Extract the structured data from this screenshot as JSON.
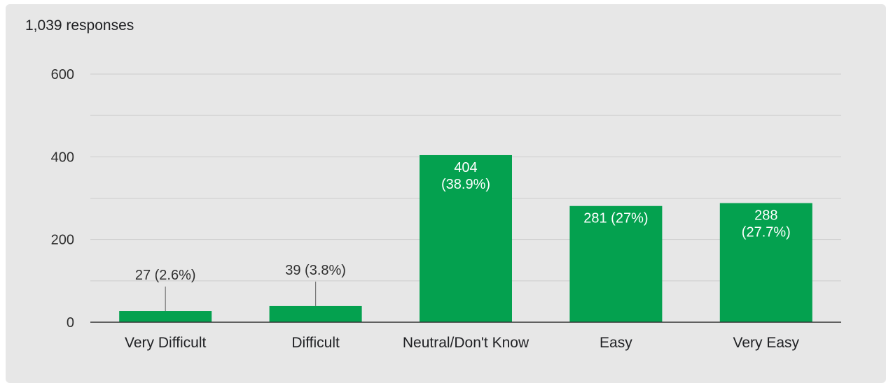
{
  "header": {
    "response_count": "1,039 responses"
  },
  "colors": {
    "card_background": "#e7e7e7",
    "bar": "#04a14f",
    "gridline": "#cccccc",
    "baseline": "#333333",
    "label_outside": "#303030",
    "label_inside": "#ffffff"
  },
  "chart_data": {
    "type": "bar",
    "categories": [
      "Very Difficult",
      "Difficult",
      "Neutral/Don't Know",
      "Easy",
      "Very Easy"
    ],
    "values": [
      27,
      39,
      404,
      281,
      288
    ],
    "data_labels": [
      [
        "27 (2.6%)"
      ],
      [
        "39 (3.8%)"
      ],
      [
        "404",
        "(38.9%)"
      ],
      [
        "281 (27%)"
      ],
      [
        "288",
        "(27.7%)"
      ]
    ],
    "label_inside": [
      false,
      false,
      true,
      true,
      true
    ],
    "yticks": [
      0,
      200,
      400,
      600
    ],
    "ylim": [
      0,
      600
    ],
    "grid": true,
    "title": "",
    "xlabel": "",
    "ylabel": ""
  }
}
